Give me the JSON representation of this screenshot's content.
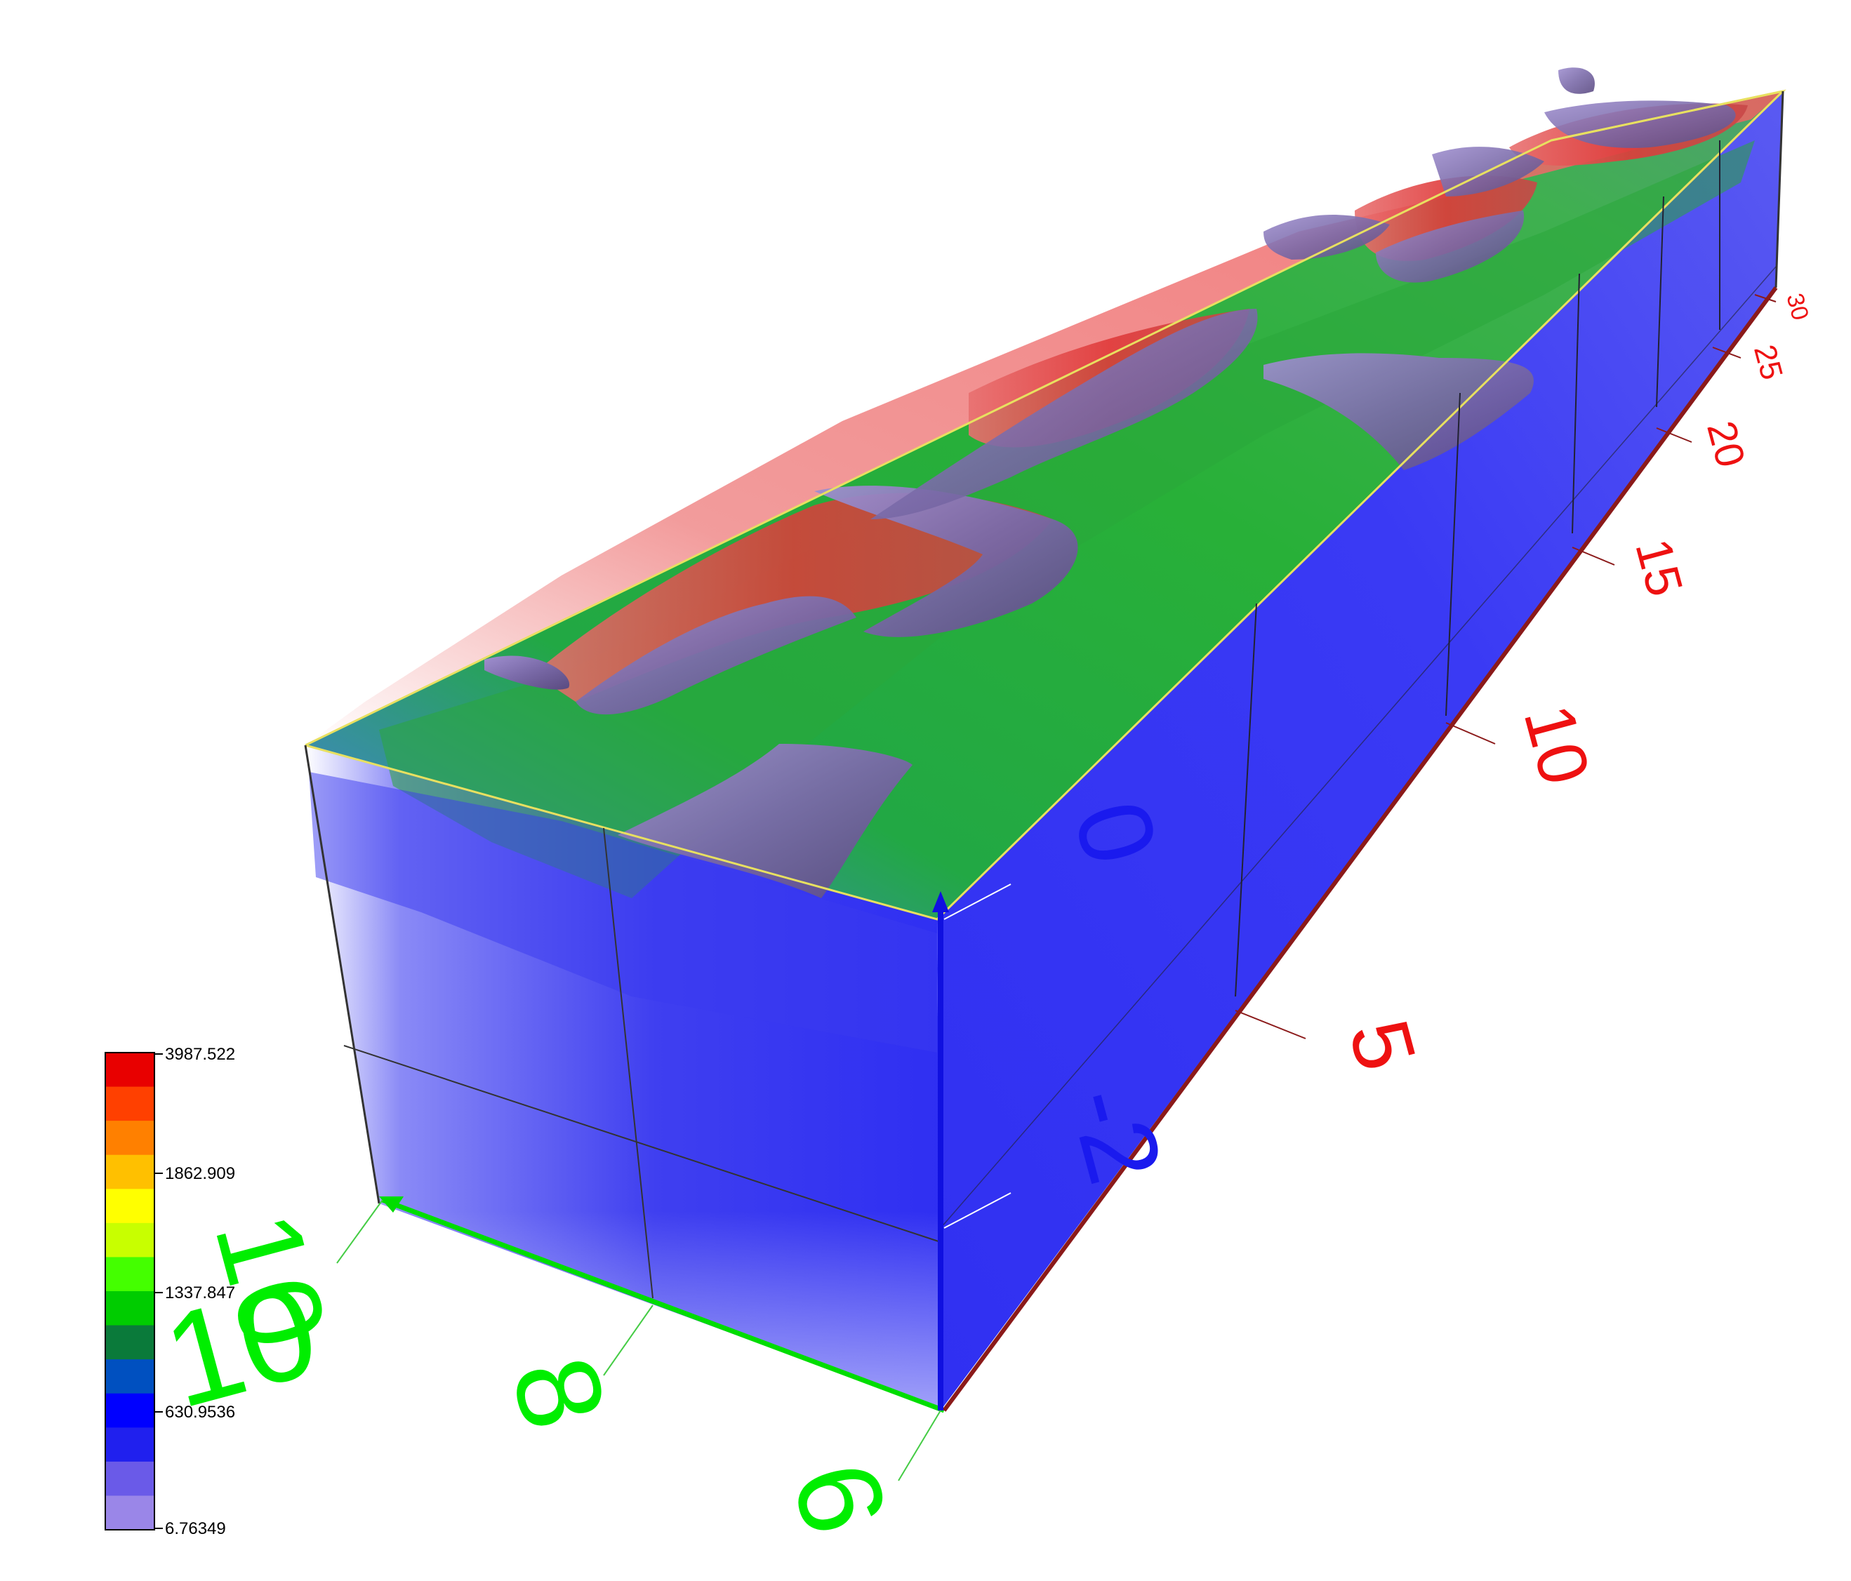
{
  "colors": {
    "x_axis": "#00dd00",
    "y_axis": "#ff0000",
    "z_axis": "#0000ff",
    "box_outline": "#e8e060",
    "volume_low": "#3a3af0",
    "volume_mid": "#22aa22",
    "volume_high": "#ee3333",
    "isosurface": "#8a7ab8"
  },
  "axes": {
    "x_ticks": [
      "6",
      "8",
      "10"
    ],
    "y_ticks": [
      "5",
      "10",
      "15",
      "20",
      "25",
      "30"
    ],
    "z_ticks": [
      "-2",
      "0"
    ],
    "top_corner_note": "",
    "bottom_corner_note": ""
  },
  "legend": {
    "labels": [
      "3987.522",
      "1862.909",
      "1337.847",
      "630.9536",
      "6.76349"
    ],
    "colors": [
      "#e80000",
      "#ff4000",
      "#ff8000",
      "#ffc000",
      "#ffff00",
      "#c8ff00",
      "#44ff00",
      "#00cc00",
      "#0a7a3a",
      "#0050c0",
      "#0000ff",
      "#2020ee",
      "#6a5ae8",
      "#9a86e8"
    ]
  }
}
